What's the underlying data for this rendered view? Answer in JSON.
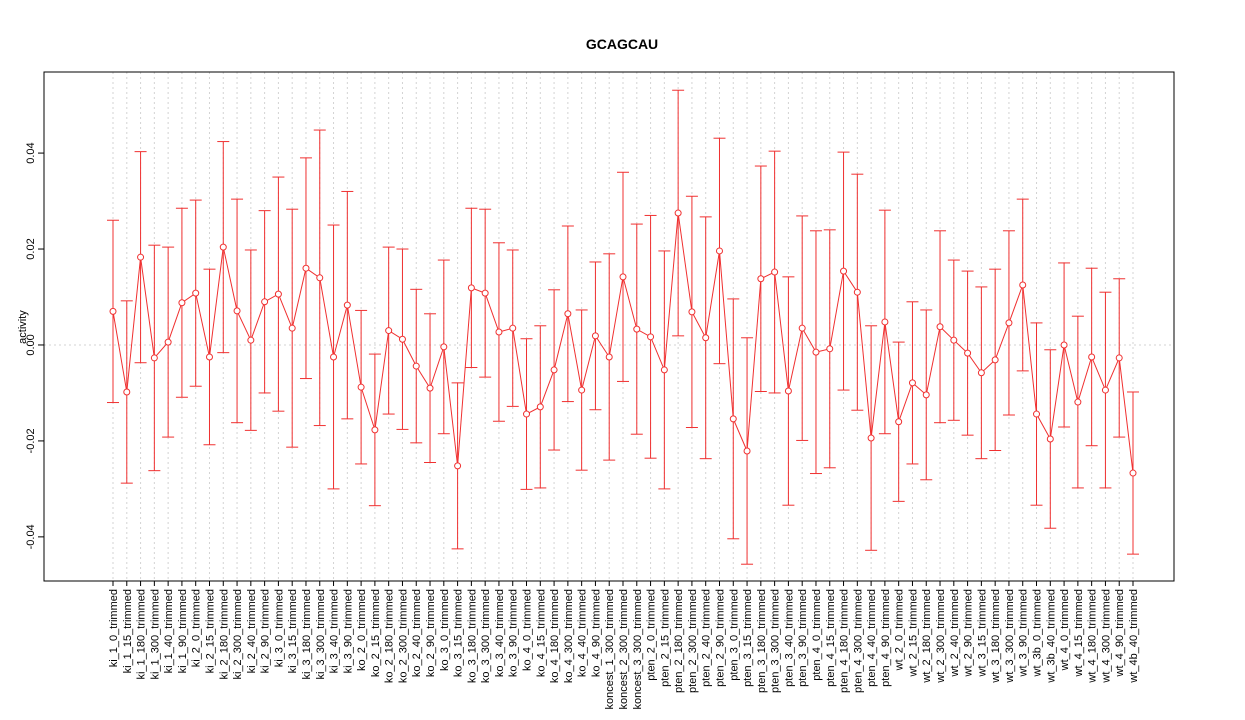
{
  "chart_data": {
    "type": "errorbar",
    "title": "GCAGCAU",
    "y_label": "activity",
    "color": "#f03030",
    "grid": true,
    "zero_line": true,
    "categories": [
      "ki_1_0_trimmed",
      "ki_1_15_trimmed",
      "ki_1_180_trimmed",
      "ki_1_300_trimmed",
      "ki_1_40_trimmed",
      "ki_1_90_trimmed",
      "ki_2_0_trimmed",
      "ki_2_15_trimmed",
      "ki_2_180_trimmed",
      "ki_2_300_trimmed",
      "ki_2_40_trimmed",
      "ki_2_90_trimmed",
      "ki_3_0_trimmed",
      "ki_3_15_trimmed",
      "ki_3_180_trimmed",
      "ki_3_300_trimmed",
      "ki_3_40_trimmed",
      "ki_3_90_trimmed",
      "ko_2_0_trimmed",
      "ko_2_15_trimmed",
      "ko_2_180_trimmed",
      "ko_2_300_trimmed",
      "ko_2_40_trimmed",
      "ko_2_90_trimmed",
      "ko_3_0_trimmed",
      "ko_3_15_trimmed",
      "ko_3_180_trimmed",
      "ko_3_300_trimmed",
      "ko_3_40_trimmed",
      "ko_3_90_trimmed",
      "ko_4_0_trimmed",
      "ko_4_15_trimmed",
      "ko_4_180_trimmed",
      "ko_4_300_trimmed",
      "ko_4_40_trimmed",
      "ko_4_90_trimmed",
      "koncest_1_300_trimmed",
      "koncest_2_300_trimmed",
      "koncest_3_300_trimmed",
      "pten_2_0_trimmed",
      "pten_2_15_trimmed",
      "pten_2_180_trimmed",
      "pten_2_300_trimmed",
      "pten_2_40_trimmed",
      "pten_2_90_trimmed",
      "pten_3_0_trimmed",
      "pten_3_15_trimmed",
      "pten_3_180_trimmed",
      "pten_3_300_trimmed",
      "pten_3_40_trimmed",
      "pten_3_90_trimmed",
      "pten_4_0_trimmed",
      "pten_4_15_trimmed",
      "pten_4_180_trimmed",
      "pten_4_300_trimmed",
      "pten_4_40_trimmed",
      "pten_4_90_trimmed",
      "wt_2_0_trimmed",
      "wt_2_15_trimmed",
      "wt_2_180_trimmed",
      "wt_2_300_trimmed",
      "wt_2_40_trimmed",
      "wt_2_90_trimmed",
      "wt_3_15_trimmed",
      "wt_3_180_trimmed",
      "wt_3_300_trimmed",
      "wt_3_90_trimmed",
      "wt_3b_0_trimmed",
      "wt_3b_40_trimmed",
      "wt_4_0_trimmed",
      "wt_4_15_trimmed",
      "wt_4_180_trimmed",
      "wt_4_300_trimmed",
      "wt_4_90_trimmed",
      "wt_4b_40_trimmed"
    ],
    "values": [
      0.007,
      -0.0098,
      0.0183,
      -0.0027,
      0.0006,
      0.0088,
      0.0108,
      -0.0025,
      0.0204,
      0.0071,
      0.001,
      0.009,
      0.0106,
      0.0035,
      0.016,
      0.014,
      -0.0025,
      0.0083,
      -0.0088,
      -0.0177,
      0.003,
      0.0012,
      -0.0044,
      -0.009,
      -0.0004,
      -0.0252,
      0.0119,
      0.0108,
      0.0027,
      0.0035,
      -0.0144,
      -0.0129,
      -0.0052,
      0.0065,
      -0.0094,
      0.0019,
      -0.0025,
      0.0142,
      0.0033,
      0.0017,
      -0.0052,
      0.0275,
      0.0069,
      0.0015,
      0.0196,
      -0.0154,
      -0.0221,
      0.0138,
      0.0152,
      -0.0096,
      0.0035,
      -0.0015,
      -0.0008,
      0.0154,
      0.011,
      -0.0194,
      0.0048,
      -0.016,
      -0.0079,
      -0.0104,
      0.0038,
      0.001,
      -0.0017,
      -0.0058,
      -0.0031,
      0.0046,
      0.0125,
      -0.0144,
      -0.0196,
      0.0,
      -0.0119,
      -0.0025,
      -0.0094,
      -0.0027,
      -0.0267
    ],
    "errors": [
      0.019,
      0.019,
      0.022,
      0.0235,
      0.0198,
      0.0197,
      0.0194,
      0.0183,
      0.022,
      0.0233,
      0.0188,
      0.019,
      0.0244,
      0.0248,
      0.023,
      0.0308,
      0.0275,
      0.0237,
      0.016,
      0.0158,
      0.0174,
      0.0188,
      0.016,
      0.0155,
      0.0181,
      0.0173,
      0.0166,
      0.0175,
      0.0186,
      0.0163,
      0.0157,
      0.0169,
      0.0167,
      0.0183,
      0.0167,
      0.0154,
      0.0215,
      0.0218,
      0.0219,
      0.0253,
      0.0248,
      0.0256,
      0.0241,
      0.0252,
      0.0235,
      0.025,
      0.0236,
      0.0235,
      0.0252,
      0.0238,
      0.0234,
      0.0253,
      0.0248,
      0.0248,
      0.0246,
      0.0234,
      0.0233,
      0.0166,
      0.0169,
      0.0177,
      0.02,
      0.0167,
      0.0171,
      0.0179,
      0.0189,
      0.0192,
      0.0179,
      0.019,
      0.0186,
      0.0171,
      0.0179,
      0.0185,
      0.0204,
      0.0165,
      0.0169
    ],
    "ylim": [
      -0.0492,
      0.0569
    ],
    "yticks": [
      {
        "value": -0.04,
        "label": "-0.04"
      },
      {
        "value": -0.02,
        "label": "-0.02"
      },
      {
        "value": 0,
        "label": "0.00"
      },
      {
        "value": 0.02,
        "label": "0.02"
      },
      {
        "value": 0.04,
        "label": "0.04"
      }
    ]
  }
}
